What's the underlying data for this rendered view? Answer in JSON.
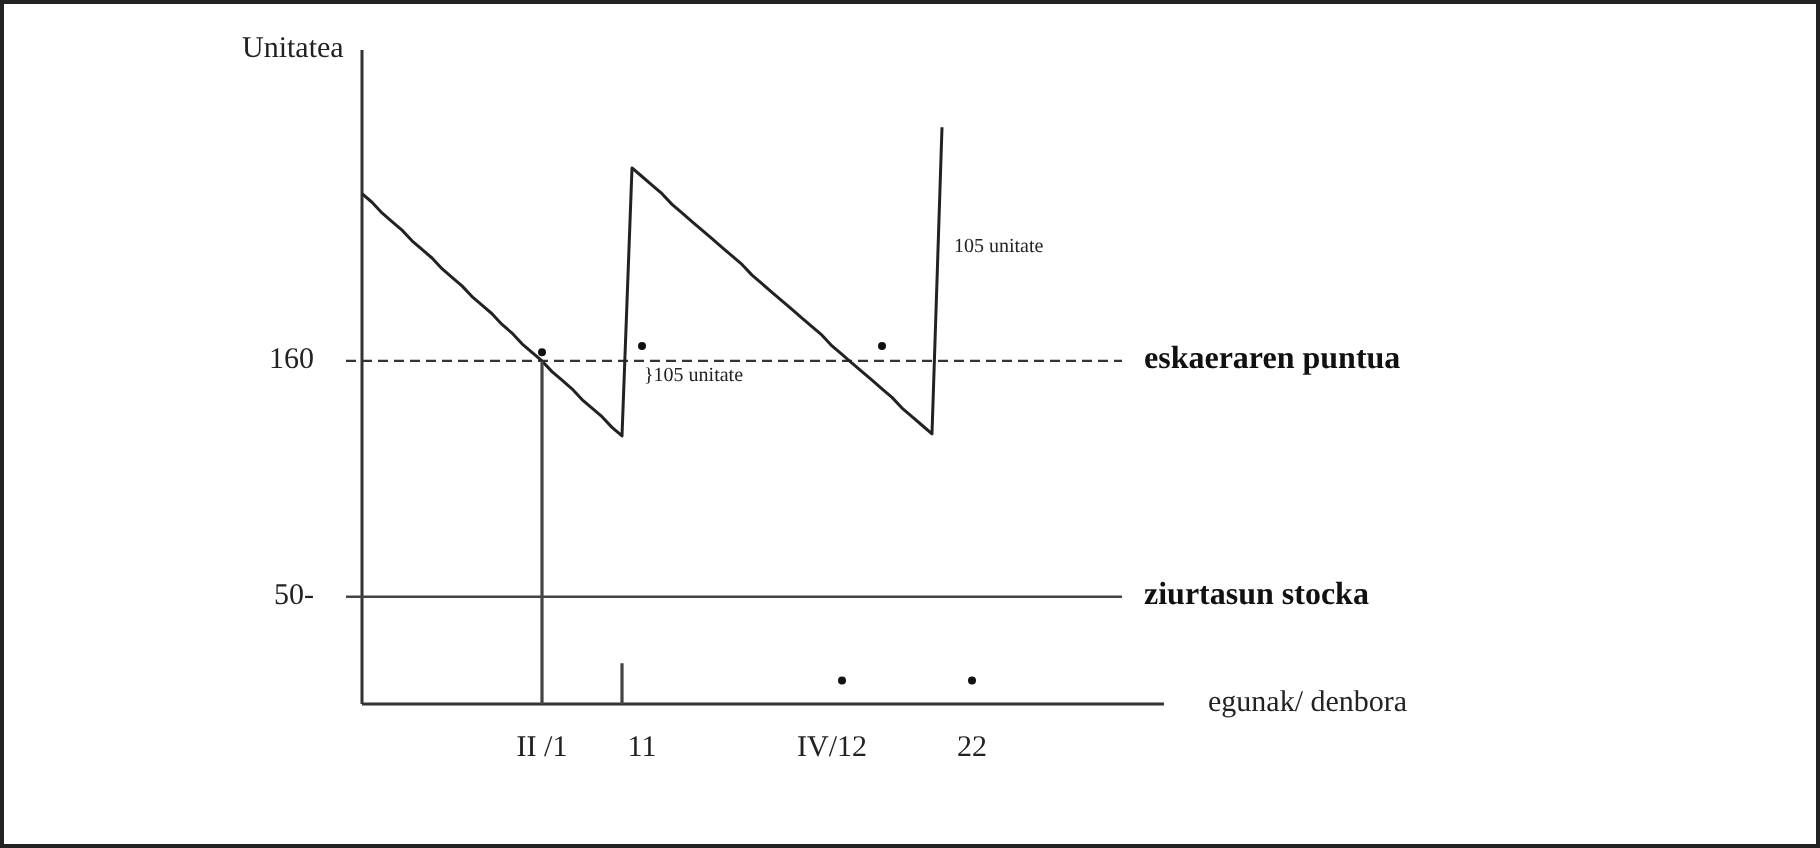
{
  "chart_data": {
    "type": "line",
    "xlabel": "egunak/ denbora",
    "ylabel": "Unitatea",
    "categories": [
      null,
      null,
      null,
      null,
      null,
      null,
      null,
      null,
      null,
      null,
      null,
      null,
      null,
      null,
      null,
      null,
      null,
      null,
      "II /1",
      null,
      null,
      null,
      null,
      null,
      null,
      null,
      null,
      null,
      "11",
      null,
      null,
      null,
      null,
      null,
      null,
      null,
      null,
      null,
      null,
      null,
      null,
      null,
      null,
      null,
      null,
      null,
      null,
      "IV/12",
      null,
      null,
      null,
      null,
      null,
      null,
      null,
      null,
      null,
      null,
      null,
      null,
      null,
      "22",
      null,
      null,
      null,
      null,
      null,
      null,
      null,
      null,
      null,
      null,
      null,
      null,
      null,
      null,
      null,
      null,
      null,
      null
    ],
    "ylim": [
      0,
      305
    ],
    "yticks": [
      160,
      {
        "value": 50,
        "label": "50-"
      }
    ],
    "series": [
      {
        "color": "#222222",
        "values": [
          238,
          234,
          229,
          225,
          221,
          216,
          212,
          208,
          203,
          199,
          195,
          190,
          186,
          182,
          177,
          173,
          168,
          164,
          160,
          155,
          151,
          147,
          142,
          138,
          134,
          129,
          125,
          250,
          246,
          242,
          238,
          233,
          229,
          225,
          221,
          217,
          213,
          209,
          205,
          200,
          196,
          192,
          188,
          184,
          180,
          176,
          172,
          167,
          163,
          159,
          155,
          151,
          147,
          143,
          138,
          134,
          130,
          126,
          269,
          null,
          null,
          null,
          null,
          null,
          null,
          null,
          null,
          null,
          null,
          null,
          null,
          null,
          null,
          null,
          null,
          null,
          null,
          null,
          null,
          null
        ]
      },
      {
        "type": "bar",
        "color": "#444444",
        "values": [
          null,
          null,
          null,
          null,
          null,
          null,
          null,
          null,
          null,
          null,
          null,
          null,
          null,
          null,
          null,
          null,
          null,
          null,
          160,
          null,
          null,
          null,
          null,
          null,
          null,
          null,
          19,
          null,
          null,
          null,
          null,
          null,
          null,
          null,
          null,
          null,
          null,
          null,
          null,
          null,
          null,
          null,
          null,
          null,
          null,
          null,
          null,
          null,
          null,
          null,
          null,
          null,
          null,
          null,
          null,
          null,
          null,
          null,
          null,
          null,
          null,
          null,
          null,
          null,
          null,
          null,
          null,
          null,
          null,
          null,
          null,
          null,
          null,
          null,
          null,
          null,
          null,
          null,
          null,
          null
        ]
      },
      {
        "type": "scatter",
        "color": "#111111",
        "marker": "circle",
        "values": [
          null,
          null,
          null,
          null,
          null,
          null,
          null,
          null,
          null,
          null,
          null,
          null,
          null,
          null,
          null,
          null,
          null,
          null,
          164,
          null,
          null,
          null,
          null,
          null,
          null,
          null,
          null,
          null,
          167,
          null,
          null,
          null,
          null,
          null,
          null,
          null,
          null,
          null,
          null,
          null,
          null,
          null,
          null,
          null,
          null,
          null,
          null,
          null,
          11,
          null,
          null,
          null,
          167,
          null,
          null,
          null,
          null,
          null,
          null,
          null,
          null,
          11,
          null,
          null,
          null,
          null,
          null,
          null,
          null,
          null,
          null,
          null,
          null,
          null,
          null,
          null,
          null,
          null,
          null,
          null
        ]
      }
    ],
    "ref_lines": [
      {
        "axis": "y",
        "value": 160,
        "label": "eskaeraren puntua",
        "line_style": "dashed",
        "color": "#333333"
      },
      {
        "axis": "y",
        "value": 50,
        "label": "ziurtasun stocka",
        "line_style": "solid",
        "color": "#444444"
      }
    ],
    "annotations": [
      "}105 unitate",
      "105 unitate"
    ]
  }
}
